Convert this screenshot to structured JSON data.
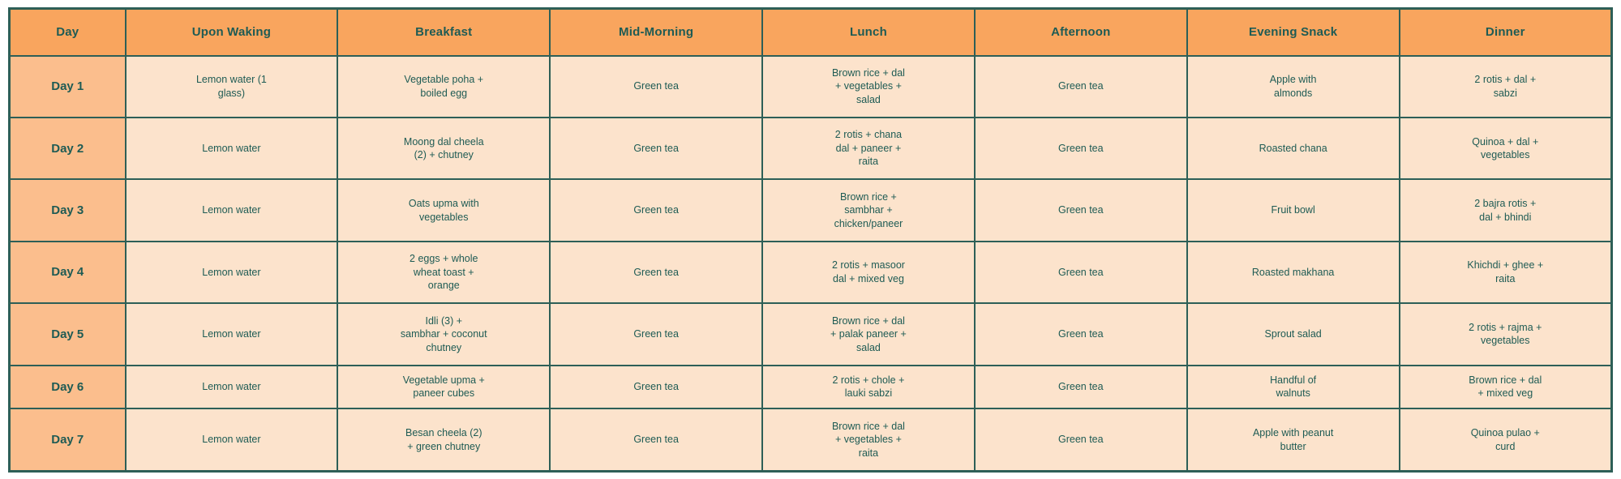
{
  "chart_data": {
    "type": "table",
    "title": "",
    "columns": [
      "Day",
      "Upon Waking",
      "Breakfast",
      "Mid-Morning",
      "Lunch",
      "Afternoon",
      "Evening Snack",
      "Dinner"
    ],
    "rows": [
      [
        "Day 1",
        "Lemon water (1\nglass)",
        "Vegetable poha +\nboiled egg",
        "Green tea",
        "Brown rice + dal\n+ vegetables +\nsalad",
        "Green tea",
        "Apple with\nalmonds",
        "2 rotis + dal +\nsabzi"
      ],
      [
        "Day 2",
        "Lemon water",
        "Moong dal cheela\n(2) + chutney",
        "Green tea",
        "2 rotis + chana\ndal + paneer +\nraita",
        "Green tea",
        "Roasted chana",
        "Quinoa + dal +\nvegetables"
      ],
      [
        "Day 3",
        "Lemon water",
        "Oats upma with\nvegetables",
        "Green tea",
        "Brown rice +\nsambhar +\nchicken/paneer",
        "Green tea",
        "Fruit bowl",
        "2 bajra rotis +\ndal + bhindi"
      ],
      [
        "Day 4",
        "Lemon water",
        "2 eggs + whole\nwheat toast +\norange",
        "Green tea",
        "2 rotis + masoor\ndal + mixed veg",
        "Green tea",
        "Roasted makhana",
        "Khichdi + ghee +\nraita"
      ],
      [
        "Day 5",
        "Lemon water",
        "Idli (3) +\nsambhar + coconut\nchutney",
        "Green tea",
        "Brown rice + dal\n+ palak paneer +\nsalad",
        "Green tea",
        "Sprout salad",
        "2 rotis + rajma +\nvegetables"
      ],
      [
        "Day 6",
        "Lemon water",
        "Vegetable upma +\npaneer cubes",
        "Green tea",
        "2 rotis + chole +\nlauki sabzi",
        "Green tea",
        "Handful of\nwalnuts",
        "Brown rice + dal\n+ mixed veg"
      ],
      [
        "Day 7",
        "Lemon water",
        "Besan cheela (2)\n+ green chutney",
        "Green tea",
        "Brown rice + dal\n+ vegetables +\nraita",
        "Green tea",
        "Apple with peanut\nbutter",
        "Quinoa pulao +\ncurd"
      ]
    ],
    "layout": {
      "grid": "on",
      "header_position": "top",
      "day_column_highlighted": true
    }
  },
  "colors": {
    "header_bg": "#f9a55e",
    "day_column_bg": "#fbbe8d",
    "cell_bg": "#fce3cc",
    "border": "#2d5f57",
    "text": "#1e5b54",
    "page_bg": "#ffffff"
  }
}
